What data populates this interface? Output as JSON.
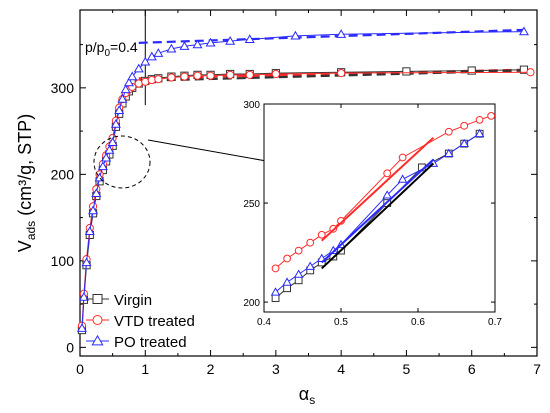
{
  "chart_data": [
    {
      "id": "main",
      "type": "line",
      "title": "",
      "xlabel": "α",
      "xlabel_sub": "s",
      "ylabel": "V",
      "ylabel_sub": "ads",
      "ylabel_rest": " (cm³/g, STP)",
      "xlim": [
        0,
        7
      ],
      "ylim": [
        -10,
        390
      ],
      "xticks": [
        "0",
        "1",
        "2",
        "3",
        "4",
        "5",
        "6",
        "7"
      ],
      "yticks": [
        "0",
        "100",
        "200",
        "300"
      ],
      "grid": false,
      "legend_position": "bottom-left",
      "annotation": {
        "text": "p/p",
        "sub": "0",
        "rest": "=0.4",
        "x": 1.0
      },
      "series": [
        {
          "name": "Virgin",
          "color": "#333333",
          "marker": "square",
          "x": [
            0.03,
            0.06,
            0.1,
            0.15,
            0.2,
            0.25,
            0.3,
            0.35,
            0.4,
            0.45,
            0.5,
            0.55,
            0.6,
            0.65,
            0.7,
            0.75,
            0.8,
            0.9,
            1.0,
            1.1,
            1.2,
            1.4,
            1.6,
            1.8,
            2.0,
            2.3,
            2.6,
            3.0,
            4.0,
            5.0,
            6.0,
            6.8
          ],
          "y": [
            20,
            55,
            95,
            130,
            155,
            175,
            192,
            205,
            215,
            223,
            233,
            255,
            270,
            282,
            290,
            296,
            300,
            305,
            308,
            310,
            311,
            313,
            314,
            315,
            315,
            316,
            316,
            317,
            318,
            319,
            320,
            321
          ]
        },
        {
          "name": "VTD treated",
          "color": "#ff2a2a",
          "marker": "circle",
          "x": [
            0.03,
            0.06,
            0.1,
            0.15,
            0.2,
            0.25,
            0.3,
            0.35,
            0.4,
            0.45,
            0.5,
            0.55,
            0.6,
            0.65,
            0.7,
            0.75,
            0.8,
            0.9,
            1.0,
            1.1,
            1.2,
            1.4,
            1.6,
            1.8,
            2.0,
            2.3,
            2.6,
            3.0,
            4.0,
            6.9
          ],
          "y": [
            25,
            62,
            102,
            138,
            163,
            183,
            200,
            212,
            222,
            232,
            242,
            262,
            277,
            287,
            294,
            298,
            301,
            305,
            307,
            309,
            310,
            312,
            313,
            314,
            314,
            315,
            315,
            316,
            317,
            318
          ]
        },
        {
          "name": "PO treated",
          "color": "#2a2aff",
          "marker": "triangle",
          "x": [
            0.03,
            0.06,
            0.1,
            0.15,
            0.2,
            0.25,
            0.3,
            0.35,
            0.4,
            0.45,
            0.5,
            0.55,
            0.6,
            0.65,
            0.7,
            0.75,
            0.8,
            0.9,
            1.0,
            1.1,
            1.2,
            1.4,
            1.6,
            1.8,
            2.0,
            2.3,
            2.6,
            3.3,
            4.0,
            6.8
          ],
          "y": [
            22,
            58,
            98,
            134,
            158,
            178,
            196,
            209,
            219,
            228,
            237,
            258,
            274,
            287,
            298,
            306,
            313,
            322,
            330,
            336,
            340,
            345,
            348,
            350,
            352,
            354,
            356,
            360,
            362,
            365
          ]
        }
      ],
      "fit_lines": [
        {
          "series": "PO treated",
          "x": [
            0.9,
            6.8
          ],
          "y": [
            352,
            367
          ],
          "color": "#2a2aff",
          "dashed": true
        },
        {
          "series": "VTD treated",
          "x": [
            0.9,
            6.8
          ],
          "y": [
            311,
            321
          ],
          "color": "#ff2a2a",
          "dashed": true
        },
        {
          "series": "Virgin",
          "x": [
            0.9,
            6.8
          ],
          "y": [
            308,
            320
          ],
          "color": "#333333",
          "dashed": true
        }
      ]
    },
    {
      "id": "inset",
      "type": "line",
      "title": "",
      "xlim": [
        0.4,
        0.7
      ],
      "ylim": [
        195,
        300
      ],
      "xticks": [
        "0.4",
        "0.5",
        "0.6",
        "0.7"
      ],
      "yticks": [
        "200",
        "250",
        "300"
      ],
      "grid": false,
      "series": [
        {
          "name": "Virgin",
          "color": "#333333",
          "marker": "square",
          "x": [
            0.415,
            0.43,
            0.445,
            0.46,
            0.475,
            0.49,
            0.5,
            0.56,
            0.605,
            0.64,
            0.66,
            0.68
          ],
          "y": [
            202,
            207,
            211,
            216,
            220,
            223,
            226,
            250,
            268,
            275,
            280,
            285
          ]
        },
        {
          "name": "VTD treated",
          "color": "#ff2a2a",
          "marker": "circle",
          "x": [
            0.415,
            0.43,
            0.445,
            0.46,
            0.475,
            0.49,
            0.5,
            0.56,
            0.58,
            0.64,
            0.66,
            0.68,
            0.695
          ],
          "y": [
            217,
            222,
            226,
            230,
            234,
            237,
            241,
            265,
            273,
            286,
            289,
            292,
            294
          ]
        },
        {
          "name": "PO treated",
          "color": "#2a2aff",
          "marker": "triangle",
          "x": [
            0.415,
            0.43,
            0.445,
            0.46,
            0.475,
            0.49,
            0.5,
            0.56,
            0.58,
            0.62,
            0.64,
            0.66,
            0.68
          ],
          "y": [
            205,
            210,
            214,
            218,
            222,
            226,
            229,
            254,
            262,
            270,
            275,
            280,
            285
          ]
        }
      ],
      "fit_lines": [
        {
          "series": "Virgin",
          "x": [
            0.475,
            0.62
          ],
          "y": [
            217,
            270
          ],
          "color": "#000000",
          "dashed": false
        },
        {
          "series": "VTD treated",
          "x": [
            0.475,
            0.62
          ],
          "y": [
            231,
            283
          ],
          "color": "#ff2a2a",
          "dashed": false
        },
        {
          "series": "PO treated",
          "x": [
            0.475,
            0.62
          ],
          "y": [
            220,
            272
          ],
          "color": "#2a2aff",
          "dashed": false
        }
      ]
    }
  ]
}
